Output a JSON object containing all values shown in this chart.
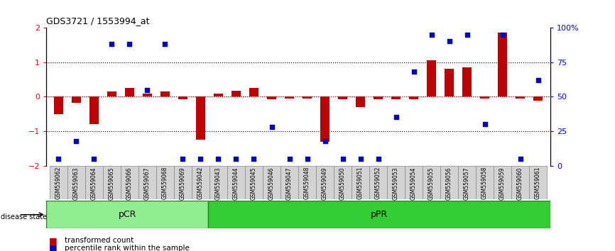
{
  "title": "GDS3721 / 1553994_at",
  "samples": [
    "GSM559062",
    "GSM559063",
    "GSM559064",
    "GSM559065",
    "GSM559066",
    "GSM559067",
    "GSM559068",
    "GSM559069",
    "GSM559042",
    "GSM559043",
    "GSM559044",
    "GSM559045",
    "GSM559046",
    "GSM559047",
    "GSM559048",
    "GSM559049",
    "GSM559050",
    "GSM559051",
    "GSM559052",
    "GSM559053",
    "GSM559054",
    "GSM559055",
    "GSM559056",
    "GSM559057",
    "GSM559058",
    "GSM559059",
    "GSM559060",
    "GSM559061"
  ],
  "bar_values": [
    -0.5,
    -0.18,
    -0.8,
    0.15,
    0.25,
    0.08,
    0.15,
    -0.08,
    -1.25,
    0.08,
    0.18,
    0.25,
    -0.08,
    -0.05,
    -0.05,
    -1.3,
    -0.08,
    -0.3,
    -0.08,
    -0.08,
    -0.08,
    1.05,
    0.8,
    0.85,
    -0.05,
    1.85,
    -0.05,
    -0.12
  ],
  "blue_values": [
    5,
    18,
    5,
    88,
    88,
    55,
    88,
    5,
    5,
    5,
    5,
    5,
    28,
    5,
    5,
    18,
    5,
    5,
    5,
    35,
    68,
    95,
    90,
    95,
    30,
    95,
    5,
    62
  ],
  "pcr_count": 9,
  "ppr_count": 19,
  "pcr_label": "pCR",
  "ppr_label": "pPR",
  "disease_state_label": "disease state",
  "legend_bar": "transformed count",
  "legend_dot": "percentile rank within the sample",
  "bar_color": "#C00000",
  "dot_color": "#0000CC",
  "ylim": [
    -2,
    2
  ],
  "y2lim": [
    0,
    100
  ],
  "yticks": [
    -2,
    -1,
    0,
    1,
    2
  ],
  "y2ticks": [
    0,
    25,
    50,
    75,
    100
  ],
  "y2ticklabels": [
    "0",
    "25",
    "50",
    "75",
    "100%"
  ],
  "hline_color": "#CC0000",
  "dotted_color": "black",
  "bg_color": "#ffffff",
  "pcr_bg": "#90EE90",
  "ppr_bg": "#32CD32",
  "cell_bg": "#D3D3D3",
  "cell_edge": "#888888"
}
